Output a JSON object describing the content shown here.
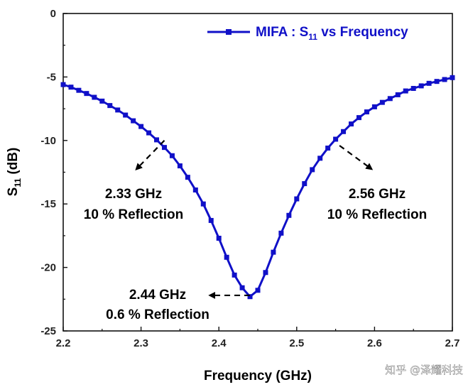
{
  "chart_data": {
    "type": "line",
    "title": "",
    "xlabel": "Frequency (GHz)",
    "ylabel_main": "S",
    "ylabel_sub": "11",
    "ylabel_unit": " (dB)",
    "xlim": [
      2.2,
      2.7
    ],
    "ylim": [
      -25,
      0
    ],
    "xticks": [
      2.2,
      2.3,
      2.4,
      2.5,
      2.6,
      2.7
    ],
    "xtick_labels": [
      "2.2",
      "2.3",
      "2.4",
      "2.5",
      "2.6",
      "2.7"
    ],
    "yticks": [
      0,
      -5,
      -10,
      -15,
      -20,
      -25
    ],
    "ytick_labels": [
      "0",
      "-5",
      "-10",
      "-15",
      "-20",
      "-25"
    ],
    "grid": false,
    "legend_position": "top-right",
    "series": [
      {
        "name": "MIFA : S11 vs Frequency",
        "name_main": "MIFA : S",
        "name_sub": "11",
        "name_tail": " vs Frequency",
        "color": "#1010c8",
        "marker": "square",
        "x": [
          2.2,
          2.21,
          2.22,
          2.23,
          2.24,
          2.25,
          2.26,
          2.27,
          2.28,
          2.29,
          2.3,
          2.31,
          2.32,
          2.33,
          2.34,
          2.35,
          2.36,
          2.37,
          2.38,
          2.39,
          2.4,
          2.41,
          2.42,
          2.43,
          2.44,
          2.45,
          2.46,
          2.47,
          2.48,
          2.49,
          2.5,
          2.51,
          2.52,
          2.53,
          2.54,
          2.55,
          2.56,
          2.57,
          2.58,
          2.59,
          2.6,
          2.61,
          2.62,
          2.63,
          2.64,
          2.65,
          2.66,
          2.67,
          2.68,
          2.69,
          2.7
        ],
        "y": [
          -5.6,
          -5.8,
          -6.05,
          -6.3,
          -6.6,
          -6.9,
          -7.25,
          -7.6,
          -8.0,
          -8.45,
          -8.9,
          -9.4,
          -9.95,
          -10.55,
          -11.2,
          -12.0,
          -12.9,
          -13.9,
          -15.0,
          -16.3,
          -17.7,
          -19.2,
          -20.6,
          -21.6,
          -22.3,
          -21.8,
          -20.4,
          -18.8,
          -17.3,
          -15.9,
          -14.6,
          -13.4,
          -12.3,
          -11.4,
          -10.6,
          -9.9,
          -9.3,
          -8.7,
          -8.2,
          -7.75,
          -7.35,
          -7.0,
          -6.7,
          -6.4,
          -6.1,
          -5.9,
          -5.7,
          -5.5,
          -5.35,
          -5.2,
          -5.05
        ]
      }
    ],
    "annotations": [
      {
        "line1": "2.33 GHz",
        "line2": "10 % Reflection",
        "point": [
          2.33,
          -10.0
        ],
        "arrow_to": [
          2.295,
          -12.2
        ]
      },
      {
        "line1": "2.56 GHz",
        "line2": "10 % Reflection",
        "point": [
          2.555,
          -10.4
        ],
        "arrow_to": [
          2.595,
          -12.2
        ]
      },
      {
        "line1": "2.44 GHz",
        "line2": "0.6 % Reflection",
        "point": [
          2.44,
          -22.2
        ],
        "arrow_to": [
          2.39,
          -22.2
        ]
      }
    ]
  },
  "watermark": "知乎 @泽耀科技"
}
